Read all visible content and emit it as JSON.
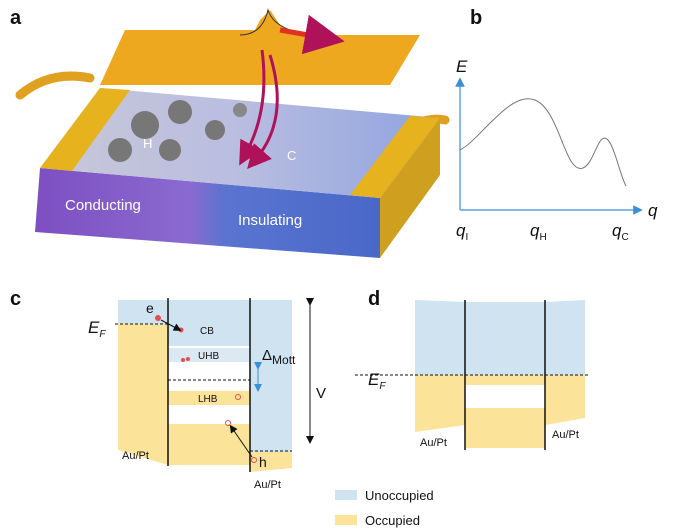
{
  "panel_a": {
    "label": "a",
    "hot_label": "H",
    "cold_label": "C",
    "left_label": "Conducting",
    "right_label": "Insulating"
  },
  "panel_b": {
    "label": "b",
    "y_axis": "E",
    "x_axis": "q",
    "x_marks": [
      {
        "symbol": "q",
        "subscript": "I"
      },
      {
        "symbol": "q",
        "subscript": "H"
      },
      {
        "symbol": "q",
        "subscript": "C"
      }
    ]
  },
  "panel_c": {
    "label": "c",
    "fermi": {
      "symbol": "E",
      "subscript": "F"
    },
    "electron": "e",
    "hole": "h",
    "cb": "CB",
    "uhb": "UHB",
    "lhb": "LHB",
    "gap": {
      "symbol": "Δ",
      "subscript": "Mott"
    },
    "voltage": "V",
    "left_electrode": "Au/Pt",
    "right_electrode": "Au/Pt"
  },
  "panel_d": {
    "label": "d",
    "fermi": {
      "symbol": "E",
      "subscript": "F"
    },
    "left_electrode": "Au/Pt",
    "right_electrode": "Au/Pt"
  },
  "legend": {
    "unoccupied": "Unoccupied",
    "occupied": "Occupied"
  }
}
